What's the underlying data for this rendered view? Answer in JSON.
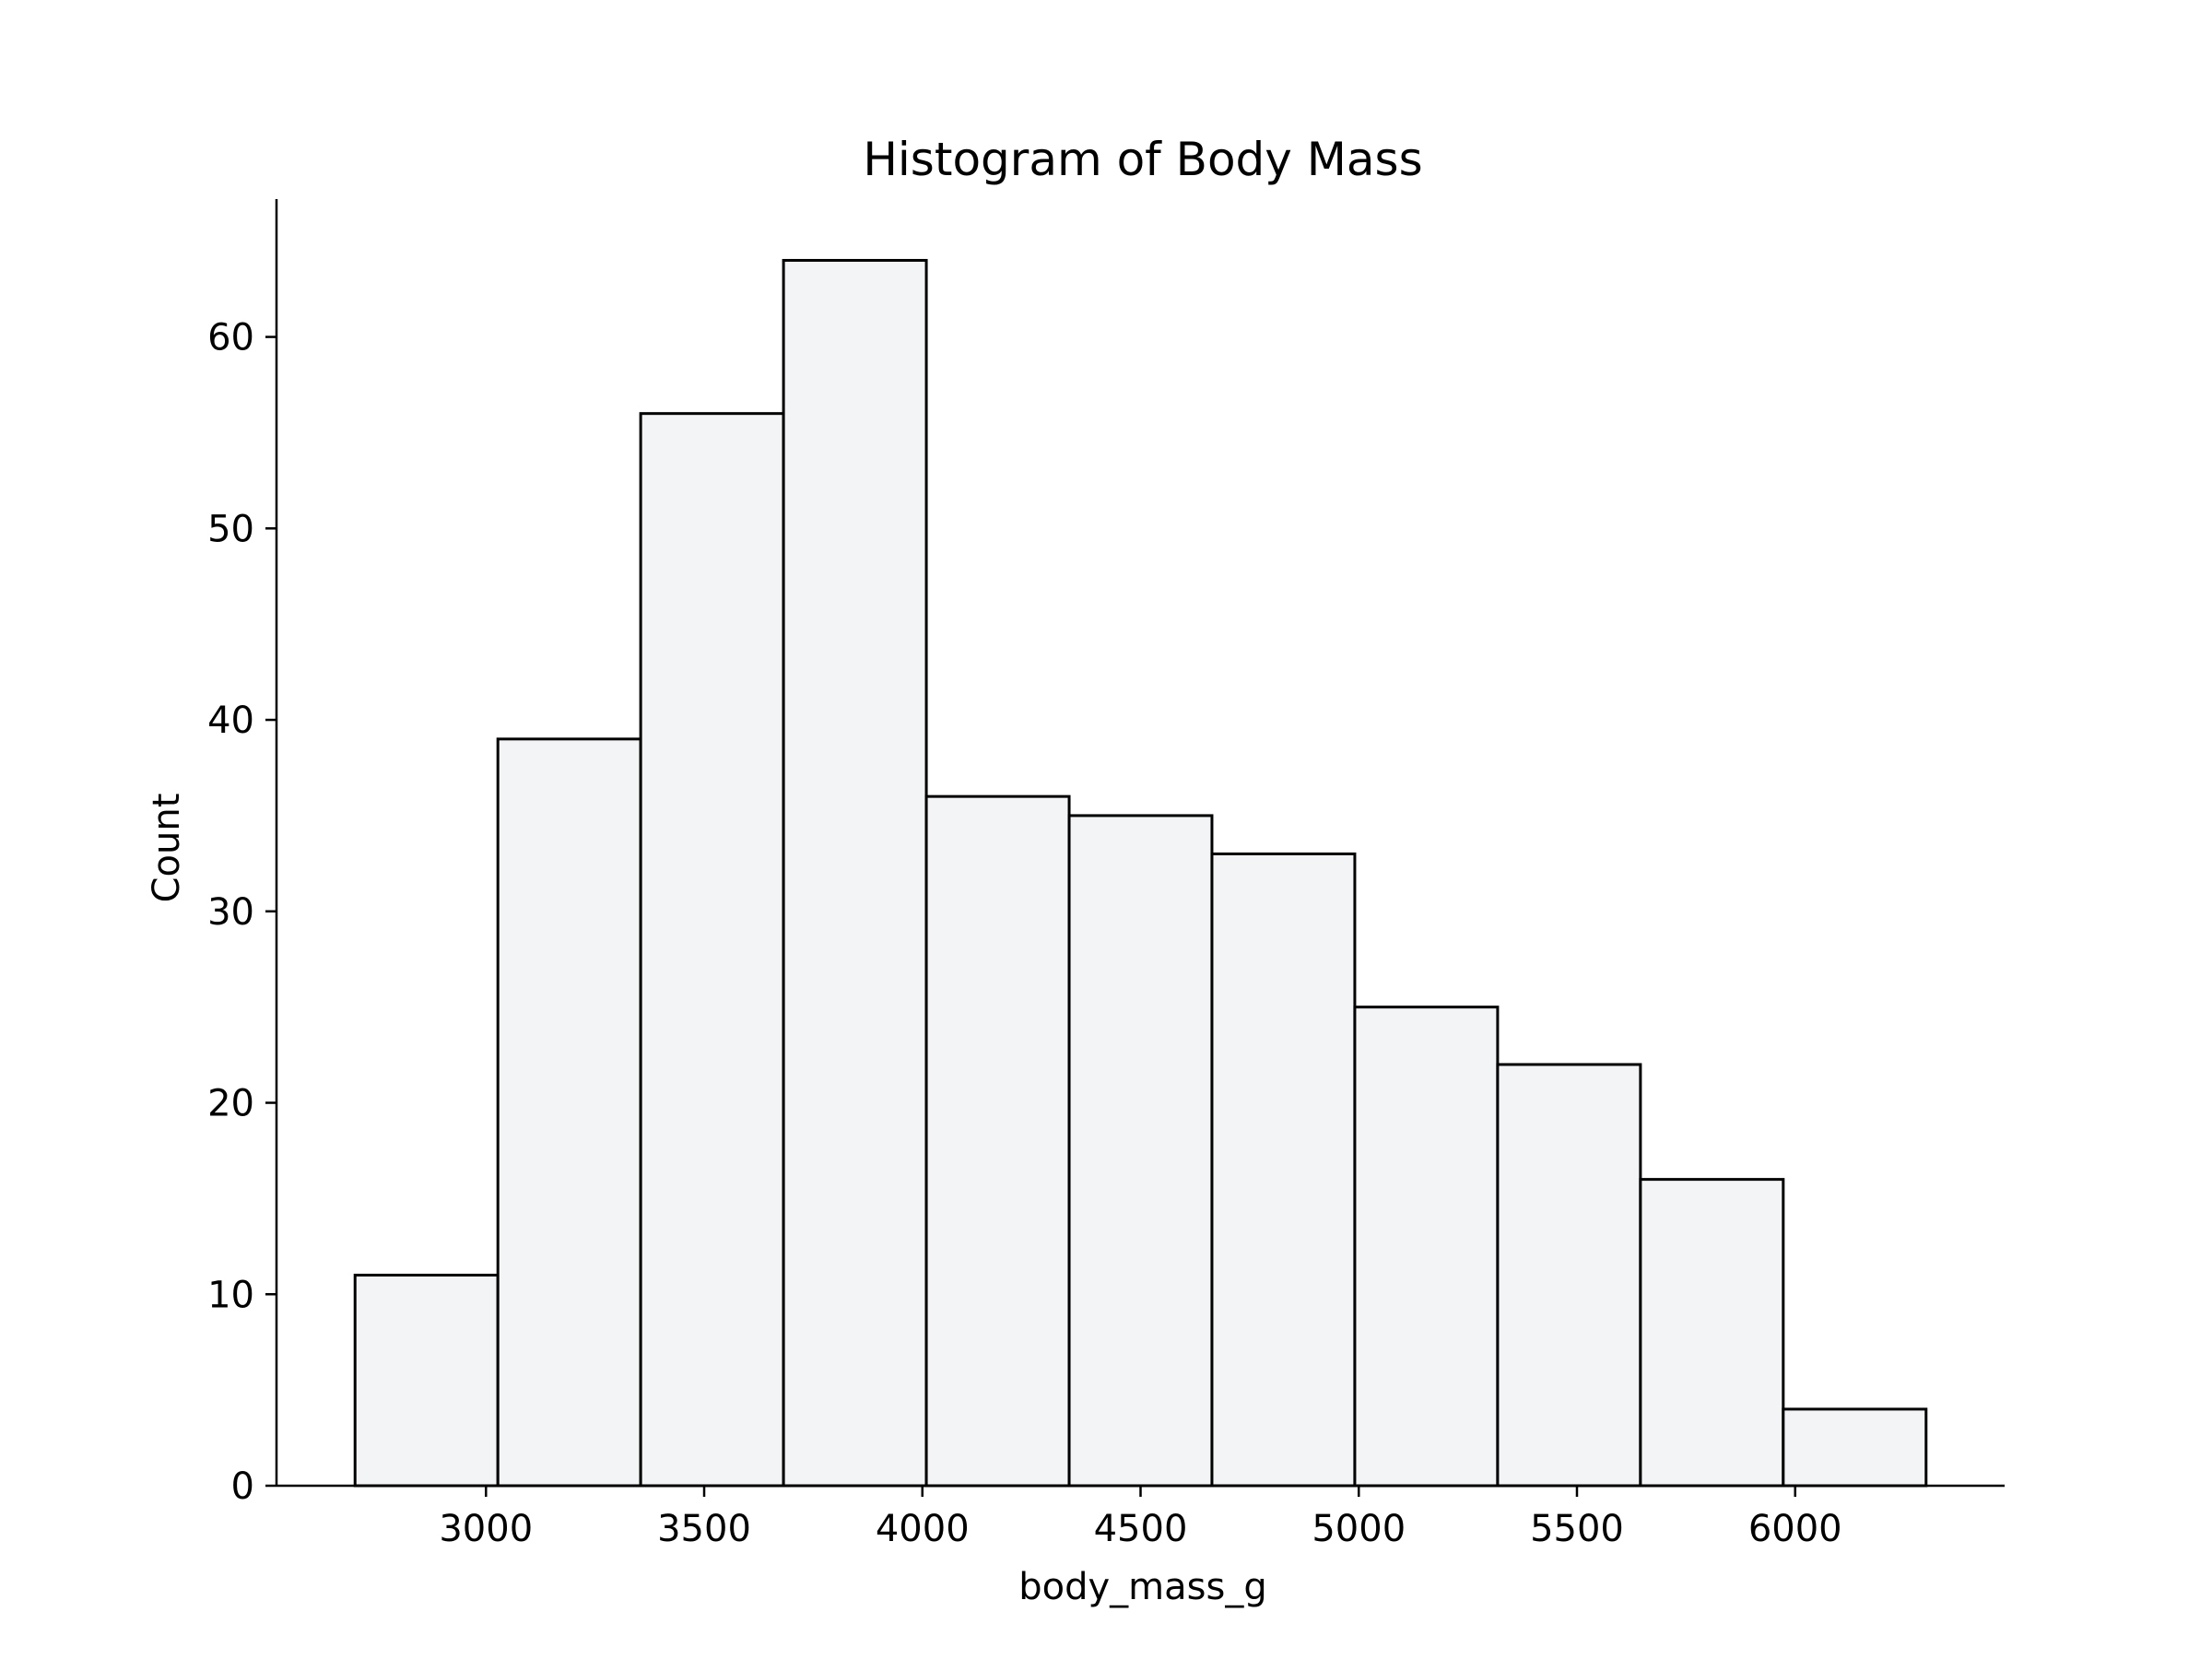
{
  "chart_data": {
    "type": "bar",
    "title": "Histogram of Body Mass",
    "xlabel": "body_mass_g",
    "ylabel": "Count",
    "bin_edges": [
      2700,
      3027.3,
      3354.5,
      3681.8,
      4009.1,
      4336.4,
      4663.6,
      4990.9,
      5318.2,
      5645.5,
      5972.7,
      6300
    ],
    "values": [
      11,
      39,
      56,
      64,
      36,
      35,
      33,
      25,
      22,
      16,
      4
    ],
    "xlim": [
      2520,
      6480
    ],
    "ylim": [
      0,
      67.2
    ],
    "xticks": [
      3000,
      3500,
      4000,
      4500,
      5000,
      5500,
      6000
    ],
    "yticks": [
      0,
      10,
      20,
      30,
      40,
      50,
      60
    ],
    "bar_fill": "#f3f4f6",
    "bar_edge": "#000000",
    "grid": false
  }
}
